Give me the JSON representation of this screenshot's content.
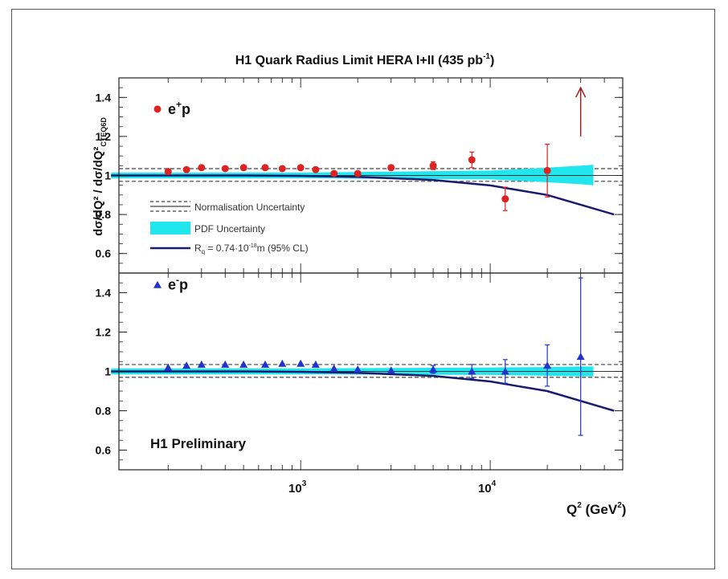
{
  "chart_data": {
    "type": "scatter",
    "title": "H1 Quark Radius Limit HERA I+II (435 pb",
    "title_sup": "-1",
    "title_end": ")",
    "x_scale": "log",
    "xlim": [
      110,
      50000
    ],
    "x_ticks": [
      {
        "value": 1000,
        "base": "10",
        "exp": "3"
      },
      {
        "value": 10000,
        "base": "10",
        "exp": "4"
      }
    ],
    "xlabel": "Q",
    "xlabel_sup": "2",
    "xlabel_unit": " (GeV",
    "xlabel_unit_sup": "2",
    "xlabel_end": ")",
    "ylabel": "dσ/dQ² / dσ/dQ²",
    "ylabel_sub": "CTEQ6D",
    "legend": {
      "norm": "Normalisation Uncertainty",
      "pdf": "PDF Uncertainty",
      "rq_pre": "R",
      "rq_sub": "q",
      "rq_post": " = 0.74·10",
      "rq_sup": "-18",
      "rq_end": "m (95% CL)"
    },
    "colors": {
      "band": "#22e6ee",
      "curve": "#1b1b6e",
      "eplus": "#dd2222",
      "eminus": "#2233cc",
      "guide": "#444444"
    },
    "panels": [
      {
        "name": "top",
        "label_base": "e",
        "label_sup": "+",
        "label_end": "p",
        "marker": "circle",
        "ylim": [
          0.5,
          1.5
        ],
        "y_ticks": [
          "0.6",
          "0.8",
          "1",
          "1.2",
          "1.4"
        ],
        "norm_band": [
          0.97,
          1.035
        ],
        "pdf_band_x": [
          100,
          1000,
          10000,
          20000,
          30000,
          35000
        ],
        "pdf_band_lo": [
          0.985,
          0.985,
          0.98,
          0.965,
          0.955,
          0.95
        ],
        "pdf_band_hi": [
          1.015,
          1.015,
          1.025,
          1.04,
          1.05,
          1.055
        ],
        "curve_x": [
          100,
          500,
          1000,
          2000,
          5000,
          10000,
          20000,
          45000
        ],
        "curve_y": [
          1.0,
          1.0,
          0.998,
          0.993,
          0.977,
          0.949,
          0.9,
          0.8
        ],
        "points": {
          "x": [
            200,
            250,
            300,
            400,
            500,
            650,
            800,
            1000,
            1200,
            1500,
            2000,
            3000,
            5000,
            8000,
            12000,
            20000
          ],
          "y": [
            1.02,
            1.03,
            1.04,
            1.035,
            1.04,
            1.04,
            1.035,
            1.04,
            1.03,
            1.01,
            1.01,
            1.04,
            1.05,
            1.08,
            0.88,
            1.025
          ],
          "err": [
            0.005,
            0.005,
            0.005,
            0.005,
            0.005,
            0.005,
            0.005,
            0.005,
            0.005,
            0.005,
            0.008,
            0.012,
            0.02,
            0.04,
            0.06,
            0.135
          ]
        },
        "arrow_x": 30000,
        "arrow_y": [
          1.2,
          1.45
        ]
      },
      {
        "name": "bottom",
        "label_base": "e",
        "label_sup": "-",
        "label_end": "p",
        "marker": "triangle",
        "ylim": [
          0.5,
          1.5
        ],
        "y_ticks": [
          "0.6",
          "0.8",
          "1",
          "1.2",
          "1.4"
        ],
        "norm_band": [
          0.97,
          1.035
        ],
        "pdf_band_x": [
          100,
          1000,
          10000,
          20000,
          30000,
          35000
        ],
        "pdf_band_lo": [
          0.985,
          0.985,
          0.982,
          0.978,
          0.975,
          0.975
        ],
        "pdf_band_hi": [
          1.015,
          1.015,
          1.02,
          1.022,
          1.025,
          1.025
        ],
        "curve_x": [
          100,
          500,
          1000,
          2000,
          5000,
          10000,
          20000,
          45000
        ],
        "curve_y": [
          1.0,
          1.0,
          0.998,
          0.993,
          0.977,
          0.949,
          0.9,
          0.8
        ],
        "points": {
          "x": [
            200,
            250,
            300,
            400,
            500,
            650,
            800,
            1000,
            1200,
            1500,
            2000,
            3000,
            5000,
            8000,
            12000,
            20000,
            30000
          ],
          "y": [
            1.02,
            1.03,
            1.035,
            1.035,
            1.035,
            1.035,
            1.04,
            1.04,
            1.035,
            1.015,
            1.01,
            1.005,
            1.01,
            1.0,
            1.0,
            1.03,
            1.075
          ],
          "err": [
            0.005,
            0.005,
            0.005,
            0.005,
            0.005,
            0.005,
            0.005,
            0.005,
            0.005,
            0.005,
            0.008,
            0.01,
            0.02,
            0.035,
            0.06,
            0.105,
            0.4
          ]
        }
      }
    ],
    "annotation": "H1 Preliminary"
  }
}
